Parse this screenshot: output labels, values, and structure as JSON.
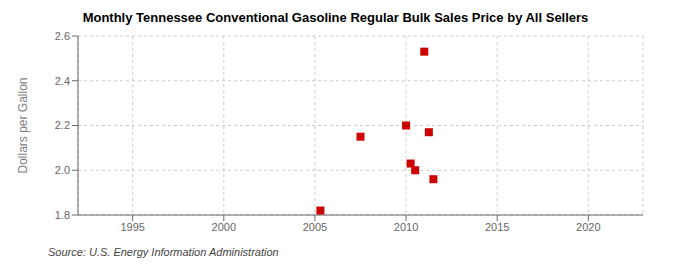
{
  "chart_data": {
    "type": "scatter",
    "title": "Monthly Tennessee Conventional Gasoline Regular Bulk Sales Price by All Sellers",
    "y_label": "Dollars per Gallon",
    "annotations": [
      "Source: U.S. Energy Information Administration"
    ],
    "x": [
      2005.3,
      2007.5,
      2010.0,
      2010.25,
      2010.5,
      2011.0,
      2011.25,
      2011.5
    ],
    "values": [
      1.82,
      2.15,
      2.2,
      2.03,
      2.0,
      2.53,
      2.17,
      1.96
    ],
    "color": "#cc0000",
    "marker": "square",
    "xlim": [
      1992,
      2023
    ],
    "ylim": [
      1.8,
      2.6
    ],
    "xticks": [
      1995,
      2000,
      2005,
      2010,
      2015,
      2020
    ],
    "yticks": [
      1.8,
      {
        "value": 2.0,
        "label": "2.0"
      },
      2.2,
      2.4,
      2.6
    ],
    "grid": true
  }
}
